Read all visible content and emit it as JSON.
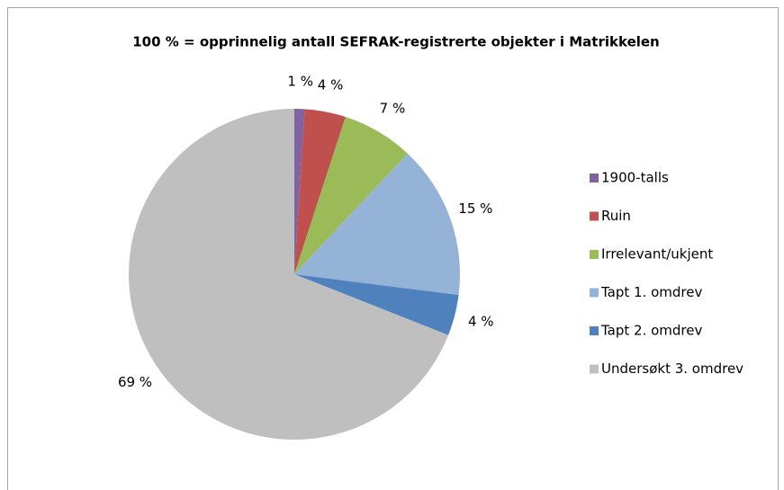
{
  "chart_data": {
    "type": "pie",
    "title": "100 % = opprinnelig antall SEFRAK-registrerte objekter i Matrikkelen",
    "categories": [
      "1900-talls",
      "Ruin",
      "Irrelevant/ukjent",
      "Tapt 1. omdrev",
      "Tapt 2. omdrev",
      "Undersøkt 3. omdrev"
    ],
    "values": [
      1,
      4,
      7,
      15,
      4,
      69
    ],
    "value_labels": [
      "1 %",
      "4 %",
      "7 %",
      "15 %",
      "4 %",
      "69 %"
    ],
    "colors": [
      "#8064a2",
      "#c0504d",
      "#9bbb59",
      "#95b3d7",
      "#4f81bd",
      "#bfbfbf"
    ],
    "legend": "right"
  }
}
